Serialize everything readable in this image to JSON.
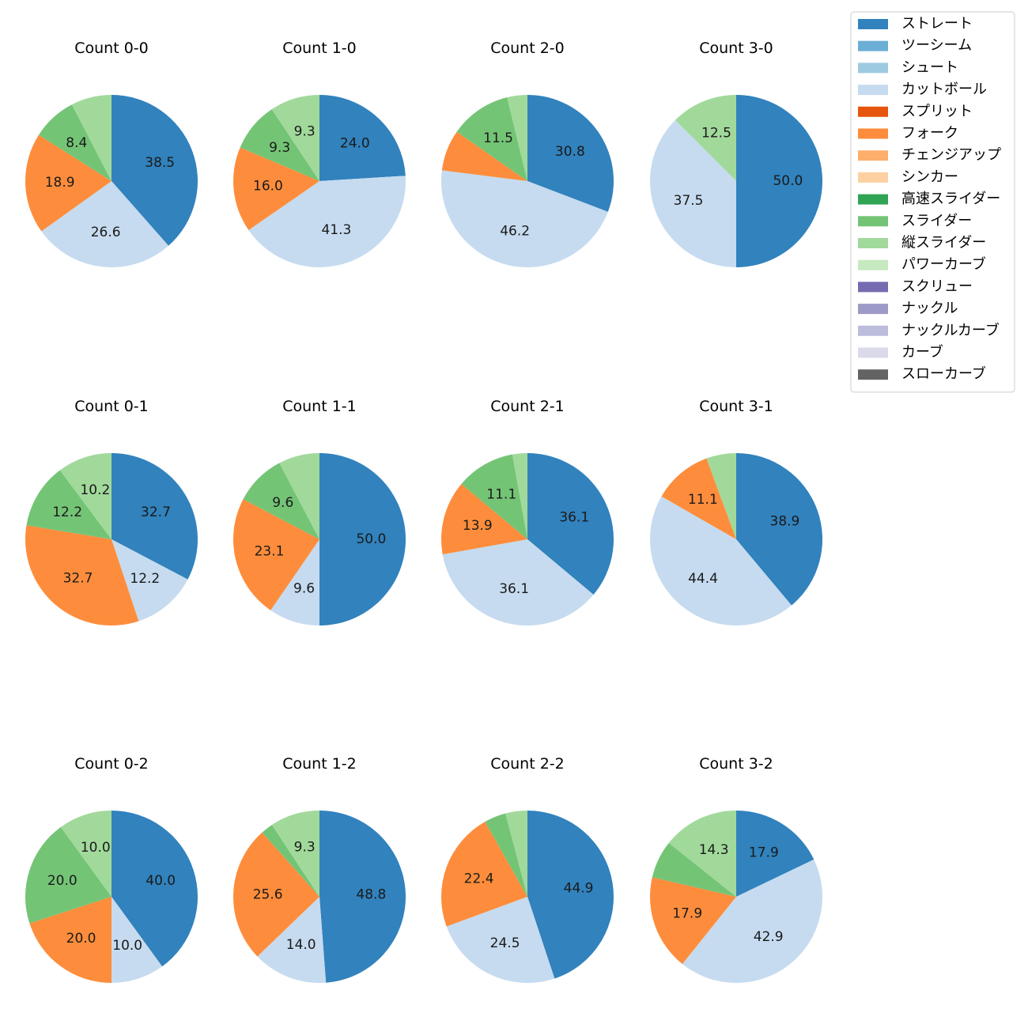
{
  "chart_data": {
    "type": "pie",
    "legend_position": "top-right",
    "legend": [
      {
        "label": "ストレート",
        "color": "#3182bd"
      },
      {
        "label": "ツーシーム",
        "color": "#6baed6"
      },
      {
        "label": "シュート",
        "color": "#9ecae1"
      },
      {
        "label": "カットボール",
        "color": "#c6dbef"
      },
      {
        "label": "スプリット",
        "color": "#e6550d"
      },
      {
        "label": "フォーク",
        "color": "#fd8d3c"
      },
      {
        "label": "チェンジアップ",
        "color": "#fdae6b"
      },
      {
        "label": "シンカー",
        "color": "#fdd0a2"
      },
      {
        "label": "高速スライダー",
        "color": "#31a354"
      },
      {
        "label": "スライダー",
        "color": "#74c476"
      },
      {
        "label": "縦スライダー",
        "color": "#a1d99b"
      },
      {
        "label": "パワーカーブ",
        "color": "#c7e9c0"
      },
      {
        "label": "スクリュー",
        "color": "#756bb1"
      },
      {
        "label": "ナックル",
        "color": "#9e9ac8"
      },
      {
        "label": "ナックルカーブ",
        "color": "#bcbddc"
      },
      {
        "label": "カーブ",
        "color": "#dadaeb"
      },
      {
        "label": "スローカーブ",
        "color": "#636363"
      }
    ],
    "charts": [
      {
        "title": "Count 0-0",
        "slices": [
          {
            "pitch": "ストレート",
            "value": 38.5,
            "label": "38.5"
          },
          {
            "pitch": "カットボール",
            "value": 26.6,
            "label": "26.6"
          },
          {
            "pitch": "フォーク",
            "value": 18.9,
            "label": "18.9"
          },
          {
            "pitch": "スライダー",
            "value": 8.4,
            "label": "8.4"
          },
          {
            "pitch": "縦スライダー",
            "value": 7.6,
            "label": ""
          }
        ]
      },
      {
        "title": "Count 1-0",
        "slices": [
          {
            "pitch": "ストレート",
            "value": 24.0,
            "label": "24.0"
          },
          {
            "pitch": "カットボール",
            "value": 41.3,
            "label": "41.3"
          },
          {
            "pitch": "フォーク",
            "value": 16.0,
            "label": "16.0"
          },
          {
            "pitch": "スライダー",
            "value": 9.3,
            "label": "9.3"
          },
          {
            "pitch": "縦スライダー",
            "value": 9.3,
            "label": "9.3"
          }
        ]
      },
      {
        "title": "Count 2-0",
        "slices": [
          {
            "pitch": "ストレート",
            "value": 30.8,
            "label": "30.8"
          },
          {
            "pitch": "カットボール",
            "value": 46.2,
            "label": "46.2"
          },
          {
            "pitch": "フォーク",
            "value": 7.7,
            "label": ""
          },
          {
            "pitch": "スライダー",
            "value": 11.5,
            "label": "11.5"
          },
          {
            "pitch": "縦スライダー",
            "value": 3.8,
            "label": ""
          }
        ]
      },
      {
        "title": "Count 3-0",
        "slices": [
          {
            "pitch": "ストレート",
            "value": 50.0,
            "label": "50.0"
          },
          {
            "pitch": "カットボール",
            "value": 37.5,
            "label": "37.5"
          },
          {
            "pitch": "縦スライダー",
            "value": 12.5,
            "label": "12.5"
          }
        ]
      },
      {
        "title": "Count 0-1",
        "slices": [
          {
            "pitch": "ストレート",
            "value": 32.7,
            "label": "32.7"
          },
          {
            "pitch": "カットボール",
            "value": 12.2,
            "label": "12.2"
          },
          {
            "pitch": "フォーク",
            "value": 32.7,
            "label": "32.7"
          },
          {
            "pitch": "スライダー",
            "value": 12.2,
            "label": "12.2"
          },
          {
            "pitch": "縦スライダー",
            "value": 10.2,
            "label": "10.2"
          }
        ]
      },
      {
        "title": "Count 1-1",
        "slices": [
          {
            "pitch": "ストレート",
            "value": 50.0,
            "label": "50.0"
          },
          {
            "pitch": "カットボール",
            "value": 9.6,
            "label": "9.6"
          },
          {
            "pitch": "フォーク",
            "value": 23.1,
            "label": "23.1"
          },
          {
            "pitch": "スライダー",
            "value": 9.6,
            "label": "9.6"
          },
          {
            "pitch": "縦スライダー",
            "value": 7.7,
            "label": ""
          }
        ]
      },
      {
        "title": "Count 2-1",
        "slices": [
          {
            "pitch": "ストレート",
            "value": 36.1,
            "label": "36.1"
          },
          {
            "pitch": "カットボール",
            "value": 36.1,
            "label": "36.1"
          },
          {
            "pitch": "フォーク",
            "value": 13.9,
            "label": "13.9"
          },
          {
            "pitch": "スライダー",
            "value": 11.1,
            "label": "11.1"
          },
          {
            "pitch": "縦スライダー",
            "value": 2.8,
            "label": ""
          }
        ]
      },
      {
        "title": "Count 3-1",
        "slices": [
          {
            "pitch": "ストレート",
            "value": 38.9,
            "label": "38.9"
          },
          {
            "pitch": "カットボール",
            "value": 44.4,
            "label": "44.4"
          },
          {
            "pitch": "フォーク",
            "value": 11.1,
            "label": "11.1"
          },
          {
            "pitch": "縦スライダー",
            "value": 5.6,
            "label": ""
          }
        ]
      },
      {
        "title": "Count 0-2",
        "slices": [
          {
            "pitch": "ストレート",
            "value": 40.0,
            "label": "40.0"
          },
          {
            "pitch": "カットボール",
            "value": 10.0,
            "label": "10.0"
          },
          {
            "pitch": "フォーク",
            "value": 20.0,
            "label": "20.0"
          },
          {
            "pitch": "スライダー",
            "value": 20.0,
            "label": "20.0"
          },
          {
            "pitch": "縦スライダー",
            "value": 10.0,
            "label": "10.0"
          }
        ]
      },
      {
        "title": "Count 1-2",
        "slices": [
          {
            "pitch": "ストレート",
            "value": 48.8,
            "label": "48.8"
          },
          {
            "pitch": "カットボール",
            "value": 14.0,
            "label": "14.0"
          },
          {
            "pitch": "フォーク",
            "value": 25.6,
            "label": "25.6"
          },
          {
            "pitch": "スライダー",
            "value": 2.3,
            "label": ""
          },
          {
            "pitch": "縦スライダー",
            "value": 9.3,
            "label": "9.3"
          }
        ]
      },
      {
        "title": "Count 2-2",
        "slices": [
          {
            "pitch": "ストレート",
            "value": 44.9,
            "label": "44.9"
          },
          {
            "pitch": "カットボール",
            "value": 24.5,
            "label": "24.5"
          },
          {
            "pitch": "フォーク",
            "value": 22.4,
            "label": "22.4"
          },
          {
            "pitch": "スライダー",
            "value": 4.1,
            "label": ""
          },
          {
            "pitch": "縦スライダー",
            "value": 4.1,
            "label": ""
          }
        ]
      },
      {
        "title": "Count 3-2",
        "slices": [
          {
            "pitch": "ストレート",
            "value": 17.9,
            "label": "17.9"
          },
          {
            "pitch": "カットボール",
            "value": 42.9,
            "label": "42.9"
          },
          {
            "pitch": "フォーク",
            "value": 17.9,
            "label": "17.9"
          },
          {
            "pitch": "スライダー",
            "value": 7.1,
            "label": ""
          },
          {
            "pitch": "縦スライダー",
            "value": 14.3,
            "label": "14.3"
          }
        ]
      }
    ]
  }
}
